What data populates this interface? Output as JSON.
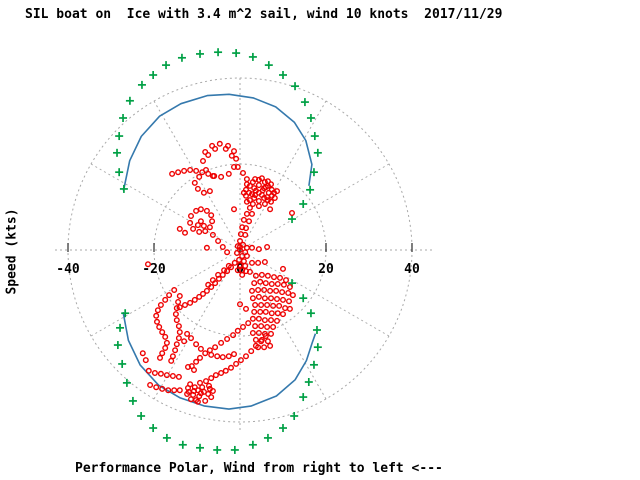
{
  "title": "SIL boat on  Ice with 3.4 m^2 sail, wind 10 knots  2017/11/29",
  "y_axis_label": "Speed (kts)",
  "caption": "Performance Polar, Wind from right to left <---",
  "colors": {
    "background": "#ffffff",
    "measured": "#ee0000",
    "envelope": "#00a045",
    "predicted": "#3579ad",
    "grid": "#a9a9a9",
    "text": "#000000"
  },
  "chart_data": {
    "type": "scatter",
    "subtype": "polar-performance-diagram",
    "title": "SIL boat on  Ice with 3.4 m^2 sail, wind 10 knots  2017/11/29",
    "ylabel": "Speed (kts)",
    "caption": "Performance Polar, Wind from right to left <---",
    "units": "knots",
    "conditions": {
      "boat": "SIL boat on Ice",
      "sail_area_m2": 3.4,
      "wind_knots": 10,
      "date": "2017/11/29"
    },
    "x_ticks": [
      -40,
      -20,
      0,
      20,
      40
    ],
    "xlim": [
      -43,
      45
    ],
    "grid": {
      "circle_radii_kts": [
        20,
        40
      ],
      "radial_step_deg": 30,
      "style": "dashed"
    },
    "legend": "none",
    "series": [
      {
        "name": "measured-speed-points",
        "marker": "open-circle",
        "color": "#ee0000"
      },
      {
        "name": "speed-envelope",
        "marker": "plus",
        "color": "#00a045"
      },
      {
        "name": "predicted-polar",
        "marker": "line",
        "color": "#3579ad"
      }
    ],
    "blue_curve_polar_deg_kts": {
      "upper": [
        [
          153,
          30.4
        ],
        [
          141,
          33.0
        ],
        [
          131,
          35.0
        ],
        [
          121,
          36.3
        ],
        [
          112,
          36.7
        ],
        [
          102,
          36.7
        ],
        [
          94,
          36.3
        ],
        [
          85,
          35.5
        ],
        [
          76,
          34.3
        ],
        [
          67,
          32.3
        ],
        [
          59,
          29.7
        ],
        [
          50,
          26.0
        ],
        [
          43,
          21.9
        ]
      ],
      "lower": [
        [
          208,
          30.8
        ],
        [
          219,
          33.4
        ],
        [
          229,
          35.4
        ],
        [
          239,
          36.7
        ],
        [
          248,
          37.1
        ],
        [
          257,
          37.2
        ],
        [
          266,
          37.1
        ],
        [
          274,
          36.4
        ],
        [
          284,
          35.0
        ],
        [
          293,
          32.8
        ],
        [
          301,
          30.0
        ],
        [
          308,
          27.3
        ],
        [
          312,
          26.2
        ]
      ]
    },
    "green_points_kts": [
      [
        -22.8,
        38.4
      ],
      [
        -25.6,
        34.7
      ],
      [
        -27.2,
        30.7
      ],
      [
        -28.1,
        26.5
      ],
      [
        -28.6,
        22.6
      ],
      [
        -28.1,
        18.1
      ],
      [
        -27.0,
        14.2
      ],
      [
        -26.7,
        -14.7
      ],
      [
        -27.9,
        -18.1
      ],
      [
        -28.4,
        -22.1
      ],
      [
        -27.4,
        -26.5
      ],
      [
        -26.3,
        -30.9
      ],
      [
        -24.9,
        -35.1
      ],
      [
        -23.0,
        -38.6
      ],
      [
        -20.2,
        -41.4
      ],
      [
        -17.0,
        -43.7
      ],
      [
        -13.3,
        -45.3
      ],
      [
        -9.3,
        -46.0
      ],
      [
        -5.3,
        -46.5
      ],
      [
        -1.2,
        -46.5
      ],
      [
        3.0,
        -45.3
      ],
      [
        6.5,
        -43.7
      ],
      [
        10.0,
        -41.4
      ],
      [
        12.6,
        -38.6
      ],
      [
        14.7,
        -34.2
      ],
      [
        16.0,
        -30.7
      ],
      [
        17.2,
        -26.7
      ],
      [
        18.1,
        -22.6
      ],
      [
        17.9,
        -18.6
      ],
      [
        16.5,
        -14.7
      ],
      [
        14.7,
        -11.2
      ],
      [
        12.1,
        -7.7
      ],
      [
        12.1,
        7.2
      ],
      [
        14.7,
        10.7
      ],
      [
        16.3,
        14.0
      ],
      [
        17.2,
        18.1
      ],
      [
        18.1,
        22.6
      ],
      [
        17.4,
        26.5
      ],
      [
        16.5,
        30.7
      ],
      [
        15.1,
        34.4
      ],
      [
        12.8,
        38.1
      ],
      [
        10.0,
        40.7
      ],
      [
        6.7,
        43.0
      ],
      [
        3.0,
        44.9
      ],
      [
        -0.9,
        45.8
      ],
      [
        -5.1,
        46.0
      ],
      [
        -9.3,
        45.6
      ],
      [
        -13.5,
        44.7
      ],
      [
        -17.2,
        43.0
      ],
      [
        -20.2,
        40.7
      ]
    ],
    "red_points_kts": [
      [
        -8.1,
        22.8
      ],
      [
        -6.5,
        24.2
      ],
      [
        -4.7,
        24.7
      ],
      [
        -2.8,
        24.2
      ],
      [
        -1.4,
        23.0
      ],
      [
        -0.9,
        21.2
      ],
      [
        -1.4,
        19.3
      ],
      [
        -2.6,
        17.7
      ],
      [
        -4.4,
        17.0
      ],
      [
        -6.3,
        17.2
      ],
      [
        -7.9,
        18.6
      ],
      [
        -8.6,
        20.7
      ],
      [
        -7.4,
        22.1
      ],
      [
        -5.8,
        23.5
      ],
      [
        -3.3,
        23.5
      ],
      [
        -1.9,
        21.9
      ],
      [
        -9.5,
        17.0
      ],
      [
        -10.5,
        15.6
      ],
      [
        -9.8,
        14.2
      ],
      [
        -8.4,
        13.3
      ],
      [
        -7.0,
        13.7
      ],
      [
        -15.8,
        17.7
      ],
      [
        -14.4,
        18.1
      ],
      [
        -13.0,
        18.4
      ],
      [
        -11.6,
        18.6
      ],
      [
        -10.2,
        18.4
      ],
      [
        -8.8,
        18.1
      ],
      [
        -7.4,
        17.7
      ],
      [
        -6.0,
        17.2
      ],
      [
        -0.5,
        19.3
      ],
      [
        0.7,
        17.9
      ],
      [
        1.6,
        16.5
      ],
      [
        4.4,
        13.3
      ],
      [
        3.3,
        14.4
      ],
      [
        5.6,
        14.4
      ],
      [
        3.3,
        12.1
      ],
      [
        5.6,
        12.1
      ],
      [
        2.1,
        13.3
      ],
      [
        6.7,
        13.3
      ],
      [
        4.4,
        15.1
      ],
      [
        4.4,
        11.4
      ],
      [
        2.3,
        14.9
      ],
      [
        6.5,
        14.9
      ],
      [
        2.3,
        11.6
      ],
      [
        6.5,
        11.6
      ],
      [
        1.4,
        14.0
      ],
      [
        7.4,
        14.0
      ],
      [
        1.4,
        12.6
      ],
      [
        7.4,
        12.6
      ],
      [
        3.0,
        15.8
      ],
      [
        5.8,
        15.8
      ],
      [
        3.0,
        10.7
      ],
      [
        5.8,
        10.7
      ],
      [
        4.4,
        16.3
      ],
      [
        4.4,
        10.2
      ],
      [
        1.6,
        15.3
      ],
      [
        7.2,
        15.3
      ],
      [
        1.6,
        11.2
      ],
      [
        7.2,
        11.2
      ],
      [
        0.9,
        13.3
      ],
      [
        7.9,
        13.3
      ],
      [
        3.7,
        13.8
      ],
      [
        5.1,
        12.8
      ],
      [
        3.5,
        12.8
      ],
      [
        5.3,
        13.9
      ],
      [
        2.8,
        13.0
      ],
      [
        6.0,
        14.6
      ],
      [
        6.3,
        12.3
      ],
      [
        5.1,
        16.7
      ],
      [
        6.5,
        16.0
      ],
      [
        3.5,
        16.5
      ],
      [
        8.1,
        12.1
      ],
      [
        8.6,
        13.7
      ],
      [
        2.3,
        9.8
      ],
      [
        1.6,
        8.4
      ],
      [
        0.9,
        7.0
      ],
      [
        0.5,
        5.3
      ],
      [
        0.2,
        3.7
      ],
      [
        0.0,
        2.1
      ],
      [
        0.0,
        0.7
      ],
      [
        2.8,
        8.4
      ],
      [
        2.1,
        6.7
      ],
      [
        1.4,
        5.1
      ],
      [
        1.2,
        3.5
      ],
      [
        7.0,
        9.5
      ],
      [
        12.1,
        8.6
      ],
      [
        -9.1,
        9.5
      ],
      [
        -7.7,
        9.1
      ],
      [
        -6.7,
        8.1
      ],
      [
        -6.5,
        6.7
      ],
      [
        -7.0,
        5.3
      ],
      [
        -8.1,
        4.4
      ],
      [
        -9.5,
        4.2
      ],
      [
        -10.9,
        4.9
      ],
      [
        -11.6,
        6.3
      ],
      [
        -11.4,
        7.9
      ],
      [
        -10.2,
        9.1
      ],
      [
        -9.8,
        5.8
      ],
      [
        -8.4,
        5.6
      ],
      [
        -9.1,
        6.7
      ],
      [
        -6.3,
        3.5
      ],
      [
        -5.1,
        2.1
      ],
      [
        -4.0,
        0.7
      ],
      [
        -3.0,
        -0.5
      ],
      [
        -14.0,
        4.9
      ],
      [
        -12.8,
        4.0
      ],
      [
        -1.4,
        9.5
      ],
      [
        -21.4,
        -3.3
      ],
      [
        -7.7,
        0.5
      ],
      [
        -0.5,
        0.9
      ],
      [
        0.7,
        1.2
      ],
      [
        1.6,
        0.5
      ],
      [
        0.0,
        0.0
      ],
      [
        1.2,
        -0.5
      ],
      [
        -0.7,
        -0.7
      ],
      [
        0.5,
        -1.4
      ],
      [
        1.6,
        -1.4
      ],
      [
        -0.2,
        -2.3
      ],
      [
        0.9,
        -2.6
      ],
      [
        0.0,
        -3.5
      ],
      [
        1.2,
        -3.7
      ],
      [
        0.5,
        -4.7
      ],
      [
        -0.5,
        -4.7
      ],
      [
        1.4,
        -4.9
      ],
      [
        0.5,
        -5.8
      ],
      [
        2.8,
        0.5
      ],
      [
        4.4,
        0.2
      ],
      [
        6.3,
        0.7
      ],
      [
        2.8,
        -3.0
      ],
      [
        4.2,
        -3.0
      ],
      [
        5.8,
        -2.8
      ],
      [
        10.0,
        -4.4
      ],
      [
        -1.2,
        -3.0
      ],
      [
        -2.1,
        -4.0
      ],
      [
        -3.0,
        -4.9
      ],
      [
        -4.0,
        -5.8
      ],
      [
        -4.9,
        -6.7
      ],
      [
        -5.8,
        -7.7
      ],
      [
        -6.7,
        -8.6
      ],
      [
        -7.7,
        -9.5
      ],
      [
        -8.6,
        -10.2
      ],
      [
        -9.5,
        -10.9
      ],
      [
        -10.5,
        -11.6
      ],
      [
        -11.6,
        -12.3
      ],
      [
        -12.8,
        -12.8
      ],
      [
        -14.0,
        -13.3
      ],
      [
        -3.7,
        -4.7
      ],
      [
        -2.6,
        -3.7
      ],
      [
        -5.1,
        -5.8
      ],
      [
        -6.3,
        -7.0
      ],
      [
        -7.4,
        -8.1
      ],
      [
        -15.3,
        -9.3
      ],
      [
        -16.5,
        -10.5
      ],
      [
        -17.4,
        -11.6
      ],
      [
        -18.4,
        -12.8
      ],
      [
        -19.1,
        -14.0
      ],
      [
        -19.5,
        -15.3
      ],
      [
        -19.3,
        -16.7
      ],
      [
        -18.8,
        -17.9
      ],
      [
        -18.1,
        -19.1
      ],
      [
        -17.4,
        -20.2
      ],
      [
        -17.0,
        -21.6
      ],
      [
        -17.4,
        -22.8
      ],
      [
        -18.1,
        -24.0
      ],
      [
        -18.6,
        -25.1
      ],
      [
        -14.0,
        -10.7
      ],
      [
        -14.4,
        -12.1
      ],
      [
        -14.7,
        -13.5
      ],
      [
        -14.9,
        -14.9
      ],
      [
        -14.7,
        -16.3
      ],
      [
        -14.2,
        -17.7
      ],
      [
        -14.0,
        -19.1
      ],
      [
        -14.2,
        -20.5
      ],
      [
        -14.7,
        -21.9
      ],
      [
        -15.1,
        -23.3
      ],
      [
        -15.6,
        -24.7
      ],
      [
        -16.0,
        -25.8
      ],
      [
        -12.3,
        -19.5
      ],
      [
        -13.0,
        -21.2
      ],
      [
        -11.4,
        -20.5
      ],
      [
        -10.2,
        -21.9
      ],
      [
        -9.1,
        -23.0
      ],
      [
        -8.1,
        -24.0
      ],
      [
        -6.7,
        -24.4
      ],
      [
        -5.3,
        -24.7
      ],
      [
        -4.0,
        -24.9
      ],
      [
        -2.6,
        -24.7
      ],
      [
        -1.4,
        -24.2
      ],
      [
        -22.6,
        -24.0
      ],
      [
        -21.9,
        -25.6
      ],
      [
        -21.2,
        -28.1
      ],
      [
        -19.8,
        -28.6
      ],
      [
        -18.4,
        -28.8
      ],
      [
        -17.0,
        -29.1
      ],
      [
        -15.6,
        -29.3
      ],
      [
        -14.2,
        -29.5
      ],
      [
        -20.9,
        -31.4
      ],
      [
        -19.5,
        -31.9
      ],
      [
        -18.1,
        -32.3
      ],
      [
        -16.7,
        -32.6
      ],
      [
        -15.3,
        -32.6
      ],
      [
        -14.0,
        -32.6
      ],
      [
        -9.8,
        -32.6
      ],
      [
        -11.6,
        -31.2
      ],
      [
        -9.3,
        -30.9
      ],
      [
        -7.2,
        -31.6
      ],
      [
        -6.3,
        -32.8
      ],
      [
        -6.7,
        -34.2
      ],
      [
        -8.1,
        -35.1
      ],
      [
        -9.8,
        -35.3
      ],
      [
        -11.4,
        -34.7
      ],
      [
        -12.3,
        -33.5
      ],
      [
        -12.1,
        -32.1
      ],
      [
        -10.9,
        -33.7
      ],
      [
        -9.5,
        -34.0
      ],
      [
        -8.4,
        -33.0
      ],
      [
        -10.5,
        -31.9
      ],
      [
        -8.8,
        -31.9
      ],
      [
        -7.4,
        -33.5
      ],
      [
        -10.2,
        -34.9
      ],
      [
        -11.9,
        -33.0
      ],
      [
        -7.0,
        -32.3
      ],
      [
        -9.1,
        -33.3
      ],
      [
        -10.7,
        -32.8
      ],
      [
        -12.1,
        -27.2
      ],
      [
        -10.7,
        -27.9
      ],
      [
        3.7,
        -6.0
      ],
      [
        5.1,
        -5.8
      ],
      [
        6.5,
        -6.0
      ],
      [
        7.9,
        -6.3
      ],
      [
        9.3,
        -6.5
      ],
      [
        10.7,
        -7.0
      ],
      [
        3.3,
        -7.7
      ],
      [
        4.7,
        -7.4
      ],
      [
        6.0,
        -7.7
      ],
      [
        7.4,
        -7.9
      ],
      [
        8.8,
        -7.9
      ],
      [
        10.2,
        -8.1
      ],
      [
        11.6,
        -8.6
      ],
      [
        2.8,
        -9.5
      ],
      [
        4.2,
        -9.3
      ],
      [
        5.6,
        -9.3
      ],
      [
        7.0,
        -9.5
      ],
      [
        8.4,
        -9.5
      ],
      [
        9.8,
        -9.8
      ],
      [
        11.2,
        -10.0
      ],
      [
        12.3,
        -10.5
      ],
      [
        3.0,
        -11.2
      ],
      [
        4.4,
        -10.9
      ],
      [
        5.8,
        -11.2
      ],
      [
        7.2,
        -11.2
      ],
      [
        8.6,
        -11.4
      ],
      [
        10.0,
        -11.6
      ],
      [
        11.4,
        -11.9
      ],
      [
        3.5,
        -12.8
      ],
      [
        4.9,
        -12.8
      ],
      [
        6.3,
        -12.8
      ],
      [
        7.7,
        -13.0
      ],
      [
        9.1,
        -13.0
      ],
      [
        10.5,
        -13.5
      ],
      [
        11.6,
        -13.7
      ],
      [
        3.3,
        -14.4
      ],
      [
        4.7,
        -14.4
      ],
      [
        6.0,
        -14.4
      ],
      [
        7.4,
        -14.7
      ],
      [
        8.8,
        -14.7
      ],
      [
        10.0,
        -14.9
      ],
      [
        3.0,
        -16.0
      ],
      [
        4.4,
        -16.0
      ],
      [
        5.8,
        -16.3
      ],
      [
        7.2,
        -16.3
      ],
      [
        8.6,
        -16.5
      ],
      [
        3.5,
        -17.7
      ],
      [
        4.9,
        -17.7
      ],
      [
        6.3,
        -17.9
      ],
      [
        7.7,
        -17.9
      ],
      [
        3.0,
        -19.3
      ],
      [
        4.4,
        -19.3
      ],
      [
        5.8,
        -19.5
      ],
      [
        7.2,
        -19.5
      ],
      [
        3.7,
        -20.9
      ],
      [
        5.1,
        -20.9
      ],
      [
        6.5,
        -21.2
      ],
      [
        4.2,
        -22.6
      ],
      [
        5.6,
        -22.6
      ],
      [
        7.0,
        -22.3
      ],
      [
        2.3,
        -5.1
      ],
      [
        0.0,
        -12.6
      ],
      [
        1.4,
        -13.7
      ],
      [
        1.9,
        -17.0
      ],
      [
        0.7,
        -17.9
      ],
      [
        -0.5,
        -18.8
      ],
      [
        -1.6,
        -19.8
      ],
      [
        -3.0,
        -20.7
      ],
      [
        -4.4,
        -21.6
      ],
      [
        -5.8,
        -22.6
      ],
      [
        -7.0,
        -23.3
      ],
      [
        -9.3,
        -25.1
      ],
      [
        -10.2,
        -26.0
      ],
      [
        -11.2,
        -27.0
      ],
      [
        6.0,
        -20.0
      ],
      [
        4.9,
        -21.2
      ],
      [
        3.7,
        -22.3
      ],
      [
        2.6,
        -23.5
      ],
      [
        1.4,
        -24.7
      ],
      [
        0.2,
        -25.6
      ],
      [
        -0.9,
        -26.5
      ],
      [
        -2.1,
        -27.4
      ],
      [
        -3.3,
        -28.1
      ],
      [
        -4.4,
        -28.6
      ],
      [
        -5.6,
        -29.1
      ],
      [
        -6.7,
        -29.8
      ],
      [
        -7.9,
        -30.5
      ]
    ]
  }
}
